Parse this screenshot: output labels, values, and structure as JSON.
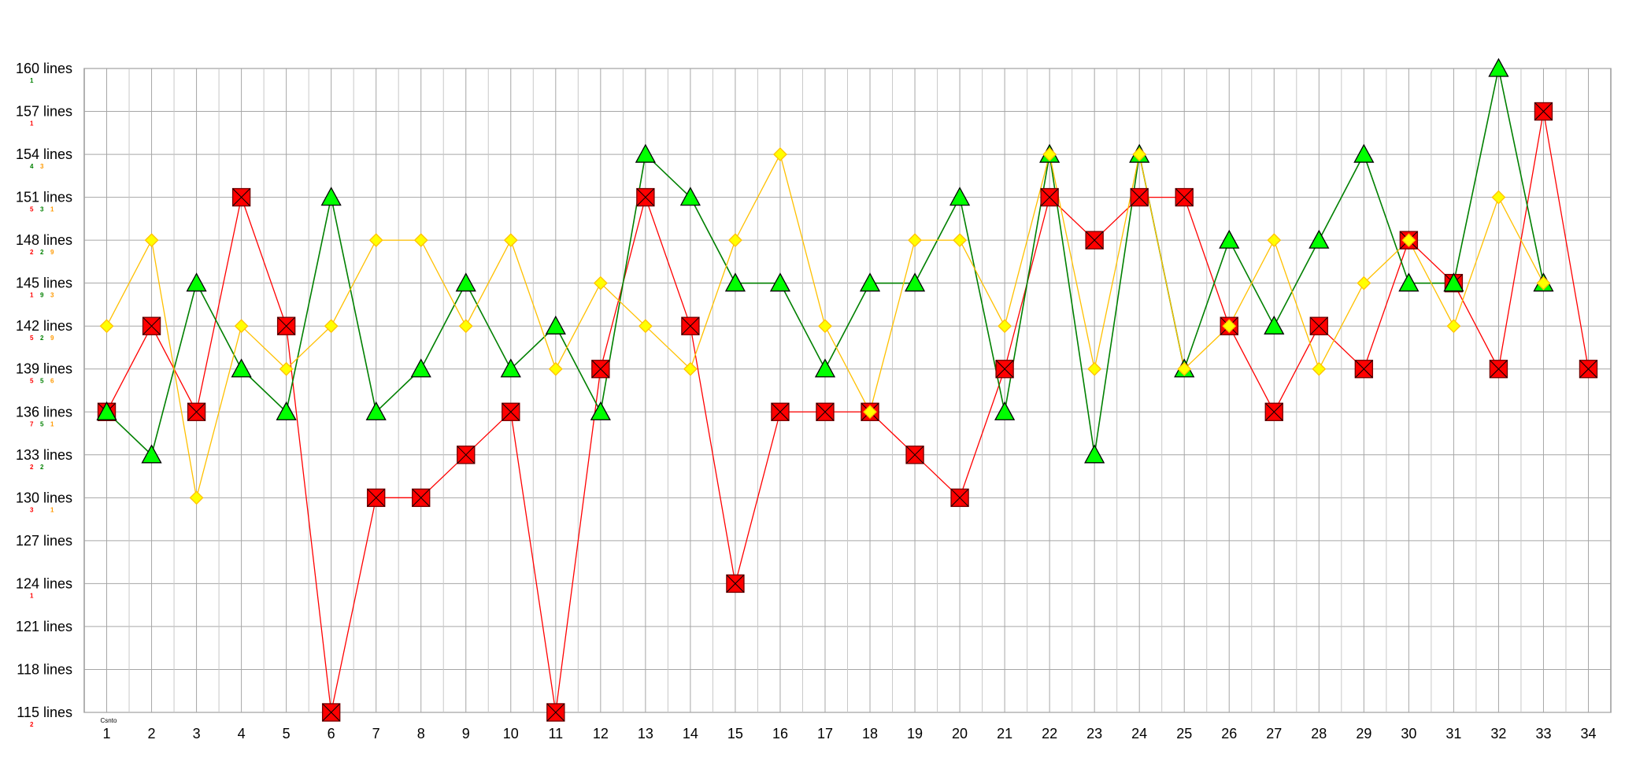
{
  "chart_data": {
    "type": "line",
    "corner_label": "Csnto",
    "y_unit": "lines",
    "ylim": [
      115,
      160
    ],
    "y_ticks": [
      160,
      157,
      154,
      151,
      148,
      145,
      142,
      139,
      136,
      133,
      130,
      127,
      124,
      121,
      118,
      115
    ],
    "categories": [
      "1",
      "2",
      "3",
      "4",
      "5",
      "6",
      "7",
      "8",
      "9",
      "10",
      "11",
      "12",
      "13",
      "14",
      "15",
      "16",
      "17",
      "18",
      "19",
      "20",
      "21",
      "22",
      "23",
      "24",
      "25",
      "26",
      "27",
      "28",
      "29",
      "30",
      "31",
      "32",
      "33",
      "34"
    ],
    "grid": true,
    "legend": "none",
    "series": [
      {
        "marker": "square-x",
        "color": "#ff0000",
        "marker_fill": "#ff0000",
        "values": [
          136,
          142,
          136,
          151,
          142,
          115,
          130,
          130,
          133,
          136,
          115,
          139,
          151,
          142,
          124,
          136,
          136,
          136,
          133,
          130,
          139,
          151,
          148,
          151,
          151,
          142,
          136,
          142,
          139,
          148,
          145,
          139,
          157,
          139
        ]
      },
      {
        "marker": "triangle",
        "color": "#008000",
        "marker_fill": "#00ff00",
        "values": [
          136,
          133,
          145,
          139,
          136,
          151,
          136,
          139,
          145,
          139,
          142,
          136,
          154,
          151,
          145,
          145,
          139,
          145,
          145,
          151,
          136,
          154,
          133,
          154,
          139,
          148,
          142,
          148,
          154,
          145,
          145,
          160,
          145,
          null
        ]
      },
      {
        "marker": "diamond",
        "color": "#ffc000",
        "marker_fill": "#ffff00",
        "values": [
          142,
          148,
          130,
          142,
          139,
          142,
          148,
          148,
          142,
          148,
          139,
          145,
          142,
          139,
          148,
          154,
          142,
          136,
          148,
          148,
          142,
          154,
          139,
          154,
          139,
          142,
          148,
          139,
          145,
          148,
          142,
          151,
          145,
          null
        ]
      }
    ],
    "tick_counts": [
      {
        "tick": 160,
        "counts": [
          {
            "v": "1",
            "color": "#008000"
          }
        ]
      },
      {
        "tick": 157,
        "counts": [
          {
            "v": "1",
            "color": "#ff0000"
          }
        ]
      },
      {
        "tick": 154,
        "counts": [
          {
            "v": "4",
            "color": "#008000"
          },
          {
            "v": "3",
            "color": "#ff9900"
          }
        ]
      },
      {
        "tick": 151,
        "counts": [
          {
            "v": "5",
            "color": "#ff0000"
          },
          {
            "v": "3",
            "color": "#008000"
          },
          {
            "v": "1",
            "color": "#ff9900"
          }
        ]
      },
      {
        "tick": 148,
        "counts": [
          {
            "v": "2",
            "color": "#ff0000"
          },
          {
            "v": "2",
            "color": "#008000"
          },
          {
            "v": "9",
            "color": "#ff9900"
          }
        ]
      },
      {
        "tick": 145,
        "counts": [
          {
            "v": "1",
            "color": "#ff0000"
          },
          {
            "v": "9",
            "color": "#008000"
          },
          {
            "v": "3",
            "color": "#ff9900"
          }
        ]
      },
      {
        "tick": 142,
        "counts": [
          {
            "v": "5",
            "color": "#ff0000"
          },
          {
            "v": "2",
            "color": "#008000"
          },
          {
            "v": "9",
            "color": "#ff9900"
          }
        ]
      },
      {
        "tick": 139,
        "counts": [
          {
            "v": "5",
            "color": "#ff0000"
          },
          {
            "v": "5",
            "color": "#008000"
          },
          {
            "v": "6",
            "color": "#ff9900"
          }
        ]
      },
      {
        "tick": 136,
        "counts": [
          {
            "v": "7",
            "color": "#ff0000"
          },
          {
            "v": "5",
            "color": "#008000"
          },
          {
            "v": "1",
            "color": "#ff9900"
          }
        ]
      },
      {
        "tick": 133,
        "counts": [
          {
            "v": "2",
            "color": "#ff0000"
          },
          {
            "v": "2",
            "color": "#008000"
          }
        ]
      },
      {
        "tick": 130,
        "counts": [
          {
            "v": "3",
            "color": "#ff0000"
          },
          {
            "v": "",
            "color": "#008000"
          },
          {
            "v": "1",
            "color": "#ff9900"
          }
        ]
      },
      {
        "tick": 124,
        "counts": [
          {
            "v": "1",
            "color": "#ff0000"
          }
        ]
      },
      {
        "tick": 115,
        "counts": [
          {
            "v": "2",
            "color": "#ff0000"
          }
        ]
      }
    ]
  }
}
